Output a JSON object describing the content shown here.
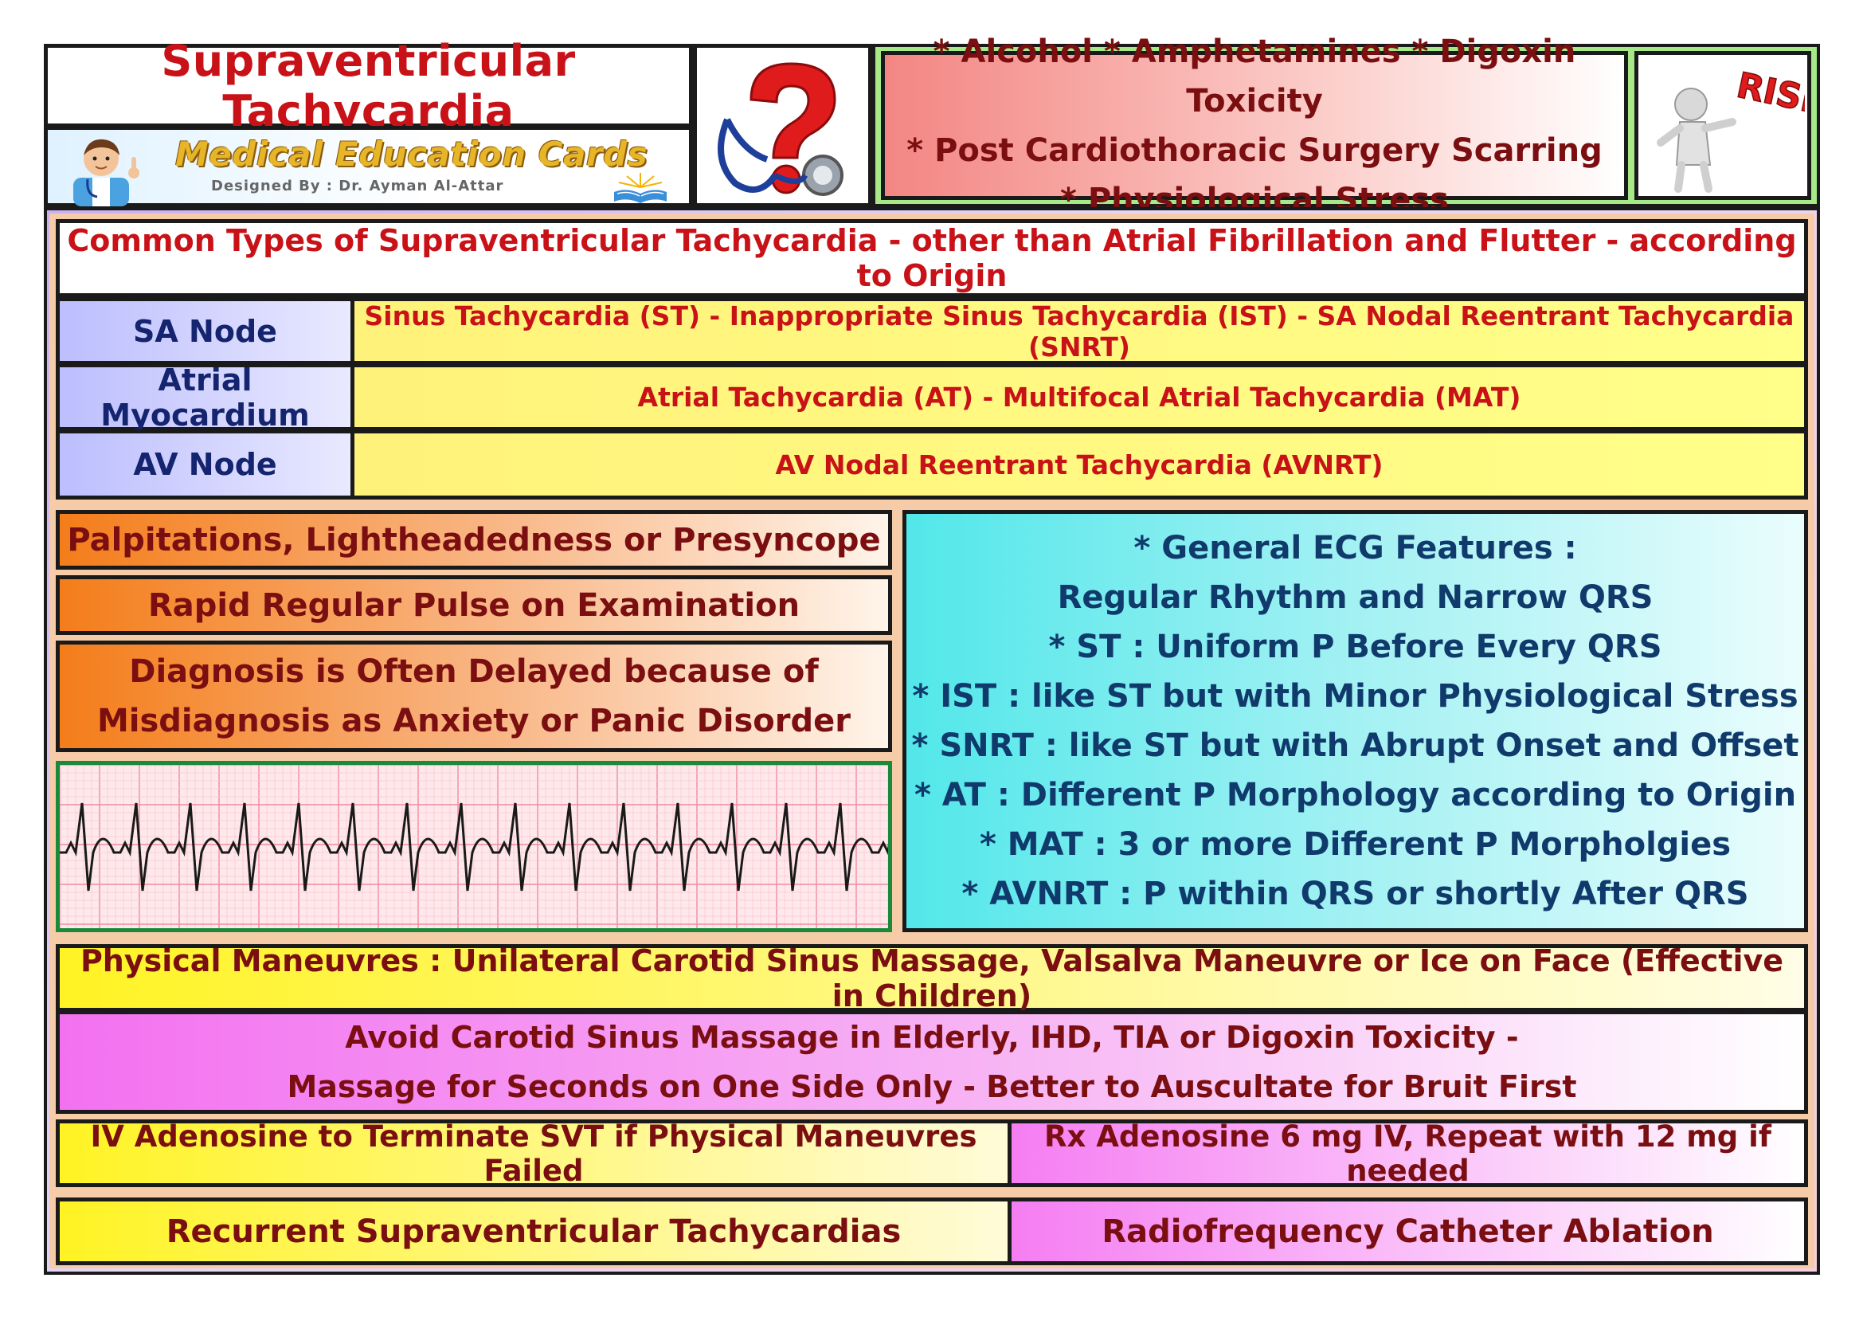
{
  "header": {
    "title": "Supraventricular Tachycardia",
    "brand_title": "Medical Education Cards",
    "brand_subtitle": "Designed By : Dr. Ayman Al-Attar",
    "risk_logo_text": "RISK"
  },
  "risk_factors": [
    "* Alcohol * Amphetamines * Digoxin Toxicity",
    "* Post Cardiothoracic Surgery Scarring",
    "* Physiological Stress"
  ],
  "types_heading": "Common Types of Supraventricular Tachycardia - other than Atrial Fibrillation and Flutter - according to Origin",
  "origins": [
    {
      "label": "SA Node",
      "types": "Sinus Tachycardia (ST) - Inappropriate Sinus Tachycardia (IST) - SA Nodal Reentrant Tachycardia (SNRT)"
    },
    {
      "label": "Atrial Myocardium",
      "types": "Atrial Tachycardia (AT) - Multifocal Atrial Tachycardia (MAT)"
    },
    {
      "label": "AV Node",
      "types": "AV Nodal Reentrant Tachycardia (AVNRT)"
    }
  ],
  "symptoms": [
    "Palpitations, Lightheadedness or Presyncope",
    "Rapid Regular Pulse on Examination",
    "Diagnosis is Often Delayed because of",
    "Misdiagnosis as Anxiety or Panic Disorder"
  ],
  "ecg_features": [
    "* General ECG Features :",
    "Regular Rhythm and Narrow QRS",
    "* ST : Uniform P Before Every QRS",
    "* IST : like ST but with Minor Physiological Stress",
    "* SNRT : like ST but with Abrupt Onset and Offset",
    "* AT : Different P Morphology according to Origin",
    "* MAT : 3 or more Different P Morpholgies",
    "* AVNRT : P within QRS or shortly After QRS"
  ],
  "management": {
    "maneuvres": "Physical Maneuvres : Unilateral Carotid Sinus Massage, Valsalva Maneuvre or Ice on Face (Effective in Children)",
    "avoid_line1": "Avoid Carotid Sinus Massage in Elderly, IHD, TIA or Digoxin Toxicity -",
    "avoid_line2": "Massage for Seconds on One Side Only - Better to Auscultate for Bruit First",
    "adenosine_indication": "IV Adenosine to Terminate SVT if Physical Maneuvres Failed",
    "adenosine_dose": "Rx Adenosine 6 mg IV, Repeat with 12 mg if needed",
    "recurrent": "Recurrent Supraventricular Tachycardias",
    "ablation": "Radiofrequency Catheter Ablation"
  },
  "icons": {
    "doctor": "doctor-avatar-icon",
    "book": "open-book-icon",
    "stethoscope": "stethoscope-question-mark-icon",
    "risk": "risk-figure-icon",
    "ecg": "ecg-strip-icon"
  },
  "colors": {
    "title_red": "#c81218",
    "label_navy": "#14246e",
    "text_maroon": "#7a0e10",
    "ecg_text": "#0f3a6b"
  }
}
